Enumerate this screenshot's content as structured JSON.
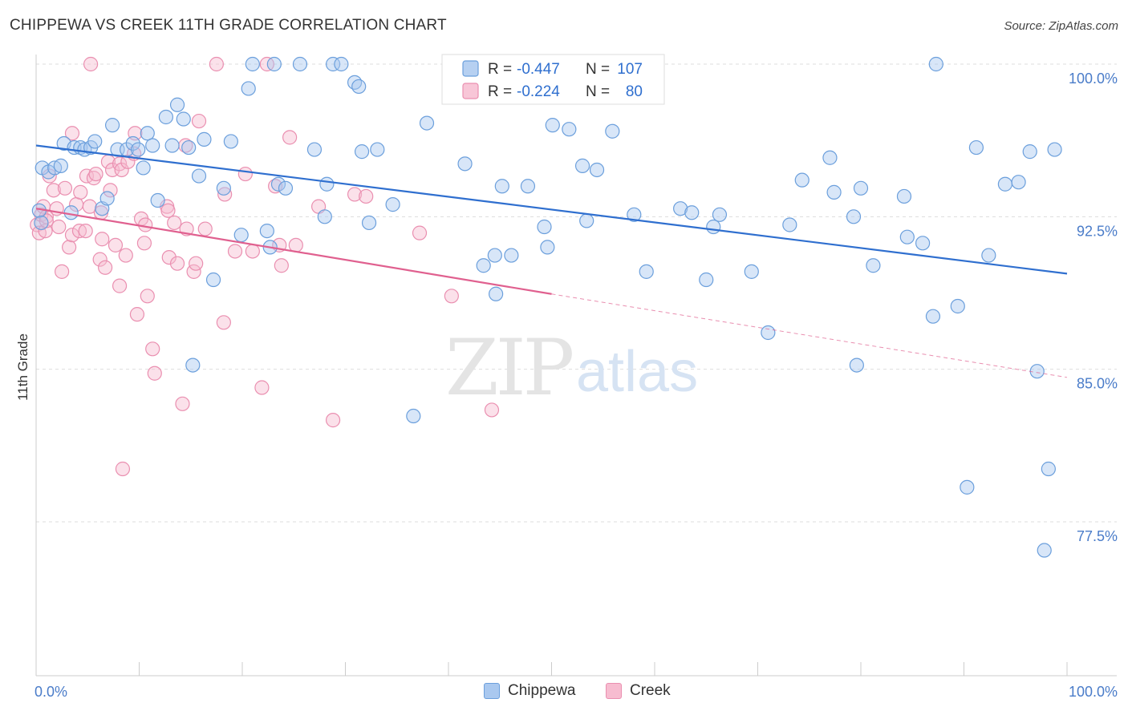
{
  "title": "CHIPPEWA VS CREEK 11TH GRADE CORRELATION CHART",
  "source": "Source: ZipAtlas.com",
  "watermark": {
    "zip": "ZIP",
    "atlas": "atlas"
  },
  "colors": {
    "chippewa_fill": "#a9c8ef",
    "chippewa_stroke": "#6b9fdc",
    "chippewa_line": "#2f6fcf",
    "creek_fill": "#f7bcd0",
    "creek_stroke": "#ea8fb0",
    "creek_line": "#e0608f",
    "tick_label": "#4a7cc9",
    "grid": "#dddddd"
  },
  "legend": {
    "chippewa": {
      "r_label": "R =",
      "r_value": "-0.447",
      "n_label": "N =",
      "n_value": "107"
    },
    "creek": {
      "r_label": "R =",
      "r_value": "-0.224",
      "n_label": "N =",
      "n_value": "80"
    }
  },
  "chart_data": {
    "type": "scatter",
    "title": "CHIPPEWA VS CREEK 11TH GRADE CORRELATION CHART",
    "xlabel": "",
    "ylabel": "11th Grade",
    "xlim": [
      0,
      100
    ],
    "ylim": [
      70.5,
      100.5
    ],
    "x_tick_labels": [
      "0.0%",
      "100.0%"
    ],
    "y_ticks": [
      77.5,
      85.0,
      92.5,
      100.0
    ],
    "y_tick_labels": [
      "77.5%",
      "85.0%",
      "92.5%",
      "100.0%"
    ],
    "grid": true,
    "legend_position": "top-center",
    "series": [
      {
        "name": "Chippewa",
        "trend": {
          "x": [
            0,
            100
          ],
          "y": [
            96.0,
            89.7
          ]
        },
        "points": [
          [
            0.3,
            92.8
          ],
          [
            0.5,
            92.2
          ],
          [
            0.6,
            94.9
          ],
          [
            1.2,
            94.7
          ],
          [
            1.8,
            94.9
          ],
          [
            2.4,
            95.0
          ],
          [
            2.7,
            96.1
          ],
          [
            3.4,
            92.7
          ],
          [
            3.7,
            95.9
          ],
          [
            4.3,
            95.9
          ],
          [
            4.7,
            95.8
          ],
          [
            5.3,
            95.9
          ],
          [
            5.7,
            96.2
          ],
          [
            6.4,
            92.9
          ],
          [
            6.9,
            93.4
          ],
          [
            7.4,
            97.0
          ],
          [
            7.9,
            95.8
          ],
          [
            8.8,
            95.8
          ],
          [
            9.4,
            96.1
          ],
          [
            9.9,
            95.8
          ],
          [
            10.4,
            94.9
          ],
          [
            10.8,
            96.6
          ],
          [
            11.3,
            96.0
          ],
          [
            11.8,
            93.3
          ],
          [
            12.6,
            97.4
          ],
          [
            13.2,
            96.0
          ],
          [
            13.7,
            98.0
          ],
          [
            14.3,
            97.3
          ],
          [
            14.8,
            95.9
          ],
          [
            15.2,
            85.2
          ],
          [
            15.8,
            94.5
          ],
          [
            16.3,
            96.3
          ],
          [
            17.2,
            89.4
          ],
          [
            18.2,
            93.9
          ],
          [
            18.9,
            96.2
          ],
          [
            19.9,
            91.6
          ],
          [
            20.6,
            98.8
          ],
          [
            21.0,
            100.0
          ],
          [
            22.4,
            91.8
          ],
          [
            22.7,
            91.0
          ],
          [
            23.5,
            94.1
          ],
          [
            23.1,
            100.0
          ],
          [
            24.2,
            93.9
          ],
          [
            25.6,
            100.0
          ],
          [
            27.0,
            95.8
          ],
          [
            28.0,
            92.5
          ],
          [
            28.2,
            94.1
          ],
          [
            28.8,
            100.0
          ],
          [
            29.6,
            100.0
          ],
          [
            30.9,
            99.1
          ],
          [
            31.3,
            98.9
          ],
          [
            31.6,
            95.7
          ],
          [
            32.3,
            92.2
          ],
          [
            33.1,
            95.8
          ],
          [
            34.6,
            93.1
          ],
          [
            36.6,
            82.7
          ],
          [
            37.9,
            97.1
          ],
          [
            41.6,
            95.1
          ],
          [
            43.4,
            90.1
          ],
          [
            44.6,
            88.7
          ],
          [
            44.5,
            90.6
          ],
          [
            45.2,
            94.0
          ],
          [
            46.1,
            90.6
          ],
          [
            47.7,
            94.0
          ],
          [
            49.3,
            92.0
          ],
          [
            49.6,
            91.0
          ],
          [
            50.1,
            97.0
          ],
          [
            51.7,
            96.8
          ],
          [
            53.0,
            95.0
          ],
          [
            53.4,
            92.3
          ],
          [
            54.4,
            94.8
          ],
          [
            55.9,
            96.7
          ],
          [
            58.0,
            92.6
          ],
          [
            59.2,
            89.8
          ],
          [
            62.5,
            92.9
          ],
          [
            63.6,
            92.7
          ],
          [
            65.0,
            89.4
          ],
          [
            65.7,
            92.0
          ],
          [
            66.3,
            92.6
          ],
          [
            69.4,
            89.8
          ],
          [
            71.0,
            86.8
          ],
          [
            73.1,
            92.1
          ],
          [
            74.3,
            94.3
          ],
          [
            77.0,
            95.4
          ],
          [
            77.4,
            93.7
          ],
          [
            79.3,
            92.5
          ],
          [
            79.6,
            85.2
          ],
          [
            80.0,
            93.9
          ],
          [
            81.2,
            90.1
          ],
          [
            84.2,
            93.5
          ],
          [
            84.5,
            91.5
          ],
          [
            86.0,
            91.2
          ],
          [
            87.0,
            87.6
          ],
          [
            87.3,
            100.0
          ],
          [
            89.4,
            88.1
          ],
          [
            90.3,
            79.2
          ],
          [
            91.2,
            95.9
          ],
          [
            92.4,
            90.6
          ],
          [
            94.0,
            94.1
          ],
          [
            95.3,
            94.2
          ],
          [
            96.4,
            95.7
          ],
          [
            98.8,
            95.8
          ],
          [
            97.1,
            84.9
          ],
          [
            98.2,
            80.1
          ],
          [
            97.8,
            76.1
          ]
        ]
      },
      {
        "name": "Creek",
        "trend": {
          "x": [
            0,
            50
          ],
          "y": [
            92.9,
            88.7
          ]
        },
        "trend_dashed": {
          "x": [
            50,
            100
          ],
          "y": [
            88.7,
            84.6
          ]
        },
        "points": [
          [
            0.1,
            92.1
          ],
          [
            0.3,
            91.7
          ],
          [
            0.5,
            92.6
          ],
          [
            0.7,
            93.0
          ],
          [
            0.9,
            91.8
          ],
          [
            1.0,
            92.5
          ],
          [
            1.3,
            94.5
          ],
          [
            1.7,
            93.8
          ],
          [
            2.0,
            92.9
          ],
          [
            2.2,
            92.0
          ],
          [
            2.5,
            89.8
          ],
          [
            2.8,
            93.9
          ],
          [
            3.2,
            91.0
          ],
          [
            3.5,
            96.6
          ],
          [
            3.5,
            91.6
          ],
          [
            3.9,
            93.1
          ],
          [
            4.2,
            91.8
          ],
          [
            4.3,
            93.7
          ],
          [
            4.8,
            91.8
          ],
          [
            4.9,
            94.5
          ],
          [
            5.2,
            93.0
          ],
          [
            5.6,
            94.4
          ],
          [
            5.8,
            94.6
          ],
          [
            6.2,
            90.4
          ],
          [
            6.3,
            92.7
          ],
          [
            6.4,
            91.4
          ],
          [
            6.7,
            90.0
          ],
          [
            7.0,
            95.2
          ],
          [
            7.2,
            93.8
          ],
          [
            7.4,
            94.8
          ],
          [
            7.7,
            91.1
          ],
          [
            8.1,
            95.1
          ],
          [
            8.1,
            89.1
          ],
          [
            8.3,
            94.8
          ],
          [
            8.4,
            80.1
          ],
          [
            8.7,
            90.6
          ],
          [
            8.9,
            95.2
          ],
          [
            9.5,
            95.6
          ],
          [
            9.6,
            96.6
          ],
          [
            9.8,
            87.7
          ],
          [
            10.2,
            92.4
          ],
          [
            10.5,
            91.2
          ],
          [
            10.6,
            92.1
          ],
          [
            10.8,
            88.6
          ],
          [
            11.3,
            86.0
          ],
          [
            11.5,
            84.8
          ],
          [
            12.7,
            93.0
          ],
          [
            12.8,
            92.8
          ],
          [
            12.9,
            90.5
          ],
          [
            13.4,
            92.2
          ],
          [
            13.7,
            90.2
          ],
          [
            14.2,
            83.3
          ],
          [
            14.5,
            96.0
          ],
          [
            14.6,
            91.9
          ],
          [
            15.3,
            89.8
          ],
          [
            15.5,
            90.2
          ],
          [
            15.8,
            97.2
          ],
          [
            16.4,
            91.9
          ],
          [
            17.5,
            100.0
          ],
          [
            18.2,
            87.3
          ],
          [
            18.3,
            93.6
          ],
          [
            19.3,
            90.8
          ],
          [
            20.3,
            94.6
          ],
          [
            21.0,
            90.8
          ],
          [
            21.9,
            84.1
          ],
          [
            22.4,
            100.0
          ],
          [
            23.2,
            94.0
          ],
          [
            23.6,
            91.1
          ],
          [
            23.8,
            90.1
          ],
          [
            24.6,
            96.4
          ],
          [
            25.2,
            91.1
          ],
          [
            27.4,
            93.0
          ],
          [
            28.8,
            82.5
          ],
          [
            30.9,
            93.6
          ],
          [
            32.0,
            93.5
          ],
          [
            37.2,
            91.7
          ],
          [
            40.3,
            88.6
          ],
          [
            44.2,
            83.0
          ],
          [
            5.3,
            100.0
          ],
          [
            1.0,
            92.3
          ]
        ]
      }
    ]
  }
}
